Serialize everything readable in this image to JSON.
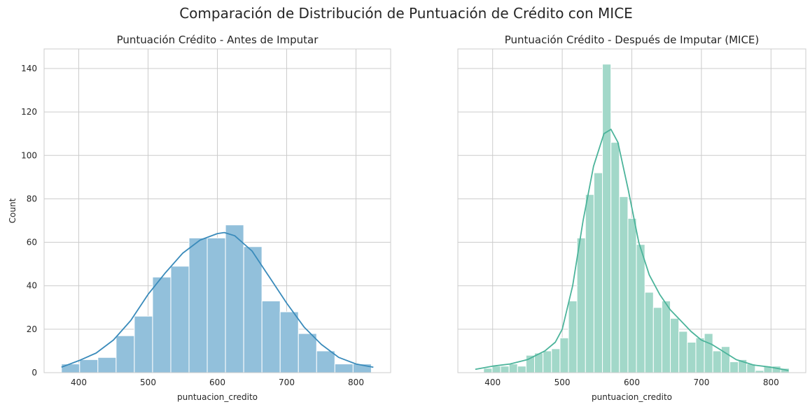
{
  "figure": {
    "suptitle": "Comparación de Distribución de Puntuación de Crédito con MICE"
  },
  "chart_data": [
    {
      "type": "bar",
      "subtype": "histogram",
      "title": "Puntuación Crédito - Antes de Imputar",
      "xlabel": "puntuacion_credito",
      "ylabel": "Count",
      "xlim": [
        350,
        850
      ],
      "ylim": [
        0,
        149
      ],
      "xticks": [
        400,
        500,
        600,
        700,
        800
      ],
      "yticks": [
        0,
        20,
        40,
        60,
        80,
        100,
        120,
        140
      ],
      "grid": true,
      "bar_color": "#92c0db",
      "kde_color": "#3a8bbb",
      "bin_edges": [
        375,
        401.3,
        427.6,
        453.9,
        480.2,
        506.5,
        532.8,
        559.1,
        585.4,
        611.7,
        638.0,
        664.3,
        690.6,
        716.9,
        743.2,
        769.5,
        795.8,
        822.1
      ],
      "values": [
        4,
        6,
        7,
        17,
        26,
        44,
        49,
        62,
        62,
        68,
        58,
        33,
        28,
        18,
        10,
        4,
        4
      ],
      "kde": {
        "x": [
          375,
          400,
          425,
          450,
          475,
          500,
          525,
          550,
          575,
          600,
          610,
          625,
          650,
          675,
          700,
          725,
          750,
          775,
          800,
          825
        ],
        "y": [
          2.5,
          5.5,
          9,
          15,
          24,
          36,
          46,
          55,
          61,
          64,
          64.5,
          63,
          56,
          44,
          32,
          21,
          13,
          7,
          4,
          2.5
        ]
      }
    },
    {
      "type": "bar",
      "subtype": "histogram",
      "title": "Puntuación Crédito - Después de Imputar (MICE)",
      "xlabel": "puntuacion_credito",
      "ylabel": "",
      "xlim": [
        350,
        850
      ],
      "ylim": [
        0,
        149
      ],
      "xticks": [
        400,
        500,
        600,
        700,
        800
      ],
      "yticks": [
        0,
        20,
        40,
        60,
        80,
        100,
        120,
        140
      ],
      "grid": true,
      "bar_color": "#a2d8c9",
      "kde_color": "#4cb49b",
      "bin_edges": [
        387.0,
        399.2,
        411.4,
        423.6,
        435.8,
        448.0,
        460.2,
        472.4,
        484.6,
        496.8,
        509.0,
        521.2,
        533.4,
        545.6,
        557.8,
        570.0,
        582.2,
        594.4,
        606.6,
        618.8,
        631.0,
        643.2,
        655.4,
        667.6,
        679.8,
        692.0,
        704.2,
        716.4,
        728.6,
        740.8,
        753.0,
        765.2,
        777.4,
        789.6,
        801.8,
        814.0,
        826.2
      ],
      "values": [
        2,
        3,
        3,
        4,
        3,
        8,
        9,
        10,
        11,
        16,
        33,
        62,
        82,
        92,
        142,
        106,
        81,
        71,
        59,
        37,
        30,
        33,
        25,
        19,
        14,
        16,
        18,
        10,
        12,
        5,
        6,
        4,
        1,
        3,
        3,
        2
      ],
      "kde": {
        "x": [
          375,
          400,
          425,
          450,
          475,
          490,
          500,
          515,
          530,
          545,
          560,
          570,
          580,
          595,
          610,
          625,
          640,
          655,
          670,
          685,
          700,
          715,
          730,
          750,
          775,
          800,
          825
        ],
        "y": [
          1.5,
          3,
          4,
          6,
          10,
          14,
          20,
          40,
          70,
          95,
          110,
          112,
          106,
          84,
          60,
          45,
          36,
          29,
          24,
          19,
          15,
          13,
          10,
          6,
          3.5,
          2.5,
          1
        ]
      }
    }
  ]
}
